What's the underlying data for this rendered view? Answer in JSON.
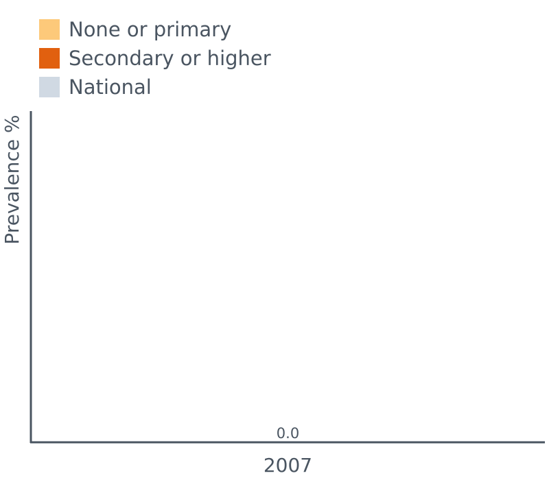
{
  "chart_data": {
    "type": "bar",
    "ylabel": "Prevalence %",
    "xlabel": "",
    "categories": [
      "2007"
    ],
    "series": [
      {
        "name": "None or primary",
        "color": "#fdc97a",
        "values": [
          null
        ]
      },
      {
        "name": "Secondary or higher",
        "color": "#e1600f",
        "values": [
          null
        ]
      },
      {
        "name": "National",
        "color": "#d0d9e3",
        "values": [
          0.0
        ]
      }
    ],
    "data_labels": [
      "0.0"
    ],
    "legend_position": "top-left",
    "grid": false
  }
}
